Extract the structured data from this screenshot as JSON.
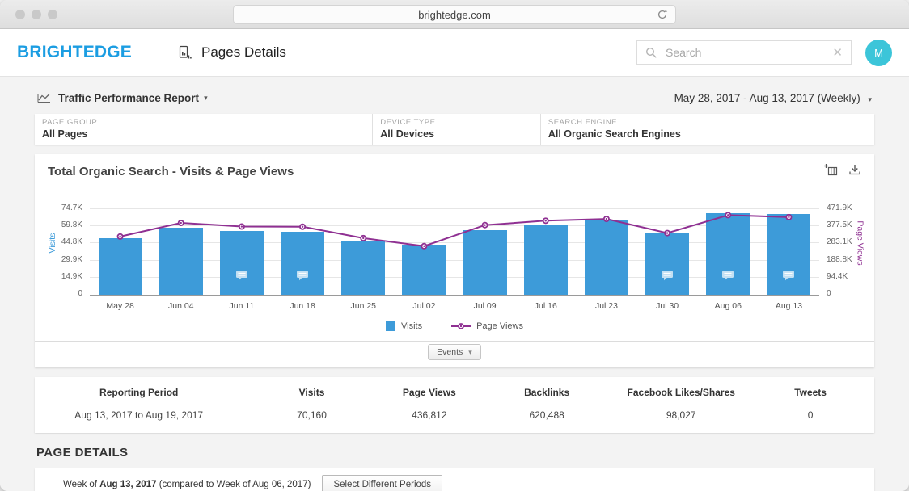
{
  "browser": {
    "url": "brightedge.com"
  },
  "header": {
    "logo": "BRIGHTEDGE",
    "page_title": "Pages Details",
    "search_placeholder": "Search",
    "avatar_initial": "M"
  },
  "icons": {
    "caret_down": "▾",
    "close": "✕"
  },
  "report_bar": {
    "title": "Traffic Performance Report",
    "date_range": "May 28, 2017 - Aug 13, 2017 (Weekly)"
  },
  "filters": [
    {
      "label": "PAGE GROUP",
      "value": "All Pages"
    },
    {
      "label": "DEVICE TYPE",
      "value": "All Devices"
    },
    {
      "label": "SEARCH ENGINE",
      "value": "All Organic Search Engines"
    }
  ],
  "chart_card": {
    "title": "Total Organic Search - Visits & Page Views",
    "events_button": "Events"
  },
  "chart_data": {
    "type": "bar",
    "title": "Total Organic Search - Visits & Page Views",
    "categories": [
      "May 28",
      "Jun 04",
      "Jun 11",
      "Jun 18",
      "Jun 25",
      "Jul 02",
      "Jul 09",
      "Jul 16",
      "Jul 23",
      "Jul 30",
      "Aug 06",
      "Aug 13"
    ],
    "series": [
      {
        "name": "Visits",
        "type": "bar",
        "axis": "left",
        "color": "#3d9bd9",
        "values": [
          49500,
          58600,
          55800,
          55200,
          47100,
          43800,
          56300,
          61200,
          64600,
          53400,
          71500,
          70160
        ]
      },
      {
        "name": "Page Views",
        "type": "line",
        "axis": "right",
        "color": "#8f3092",
        "values": [
          330000,
          405000,
          385000,
          384000,
          321000,
          277000,
          393000,
          417000,
          427000,
          349000,
          448000,
          436812
        ]
      }
    ],
    "left_axis": {
      "label": "Visits",
      "max": 74700,
      "ticks": [
        "0",
        "14.9K",
        "29.9K",
        "44.8K",
        "59.8K",
        "74.7K"
      ]
    },
    "right_axis": {
      "label": "Page Views",
      "max": 471900,
      "ticks": [
        "0",
        "94.4K",
        "188.8K",
        "283.1K",
        "377.5K",
        "471.9K"
      ]
    },
    "annotations": [
      false,
      false,
      true,
      true,
      false,
      false,
      false,
      false,
      false,
      true,
      true,
      true
    ],
    "legend": [
      "Visits",
      "Page Views"
    ],
    "legend_position": "bottom",
    "grid": true
  },
  "summary_table": {
    "columns": [
      "Reporting Period",
      "Visits",
      "Page Views",
      "Backlinks",
      "Facebook Likes/Shares",
      "Tweets"
    ],
    "rows": [
      [
        "Aug 13, 2017 to Aug 19, 2017",
        "70,160",
        "436,812",
        "620,488",
        "98,027",
        "0"
      ]
    ]
  },
  "page_details": {
    "heading": "PAGE DETAILS",
    "week_prefix": "Week of ",
    "week_bold": "Aug 13, 2017",
    "week_suffix": " (compared to Week of Aug 06, 2017)",
    "button": "Select Different Periods"
  }
}
